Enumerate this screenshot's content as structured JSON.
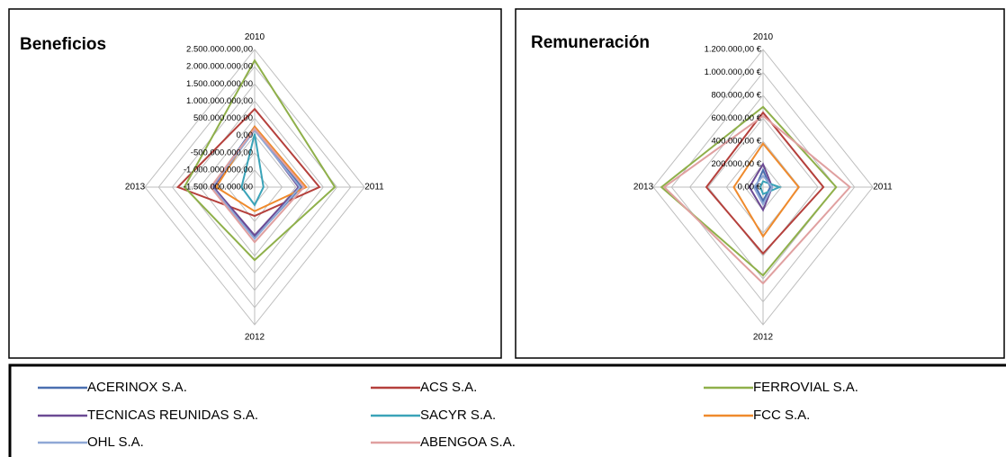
{
  "chart_data": [
    {
      "type": "radar",
      "title": "Beneficios",
      "categories": [
        "2010",
        "2011",
        "2012",
        "2013"
      ],
      "rlim": [
        -1500000000,
        2500000000
      ],
      "rticks": [
        {
          "value": -1500000000,
          "label": "-1.500.000.000,00"
        },
        {
          "value": -1000000000,
          "label": "-1.000.000.000,00"
        },
        {
          "value": -500000000,
          "label": "-500.000.000,00"
        },
        {
          "value": 0,
          "label": "0,00"
        },
        {
          "value": 500000000,
          "label": "500.000.000,00"
        },
        {
          "value": 1000000000,
          "label": "1.000.000.000,00"
        },
        {
          "value": 1500000000,
          "label": "1.500.000.000,00"
        },
        {
          "value": 2000000000,
          "label": "2.000.000.000,00"
        },
        {
          "value": 2500000000,
          "label": "2.500.000.000,00"
        }
      ],
      "series": [
        {
          "values": [
            260000000,
            200000000,
            -20000000,
            60000000
          ]
        },
        {
          "values": [
            770000000,
            860000000,
            -660000000,
            1300000000
          ]
        },
        {
          "values": [
            2180000000,
            1420000000,
            620000000,
            1060000000
          ]
        },
        {
          "values": [
            200000000,
            100000000,
            -100000000,
            0
          ]
        },
        {
          "values": [
            50000000,
            -1180000000,
            -980000000,
            -1020000000
          ]
        },
        {
          "values": [
            260000000,
            380000000,
            -800000000,
            -100000000
          ]
        },
        {
          "values": [
            150000000,
            150000000,
            0,
            50000000
          ]
        },
        {
          "values": [
            200000000,
            300000000,
            100000000,
            100000000
          ]
        }
      ]
    },
    {
      "type": "radar",
      "title": "Remuneración",
      "categories": [
        "2010",
        "2011",
        "2012",
        "2013"
      ],
      "rlim": [
        0,
        1200000
      ],
      "rticks": [
        {
          "value": 0,
          "label": "0,00 €"
        },
        {
          "value": 200000,
          "label": "200.000,00 €"
        },
        {
          "value": 400000,
          "label": "400.000,00 €"
        },
        {
          "value": 600000,
          "label": "600.000,00 €"
        },
        {
          "value": 800000,
          "label": "800.000,00 €"
        },
        {
          "value": 1000000,
          "label": "1.000.000,00 €"
        },
        {
          "value": 1200000,
          "label": "1.200.000,00 €"
        }
      ],
      "series": [
        {
          "values": [
            150000,
            80000,
            120000,
            80000
          ]
        },
        {
          "values": [
            650000,
            660000,
            580000,
            620000
          ]
        },
        {
          "values": [
            700000,
            800000,
            770000,
            1110000
          ]
        },
        {
          "values": [
            200000,
            100000,
            200000,
            150000
          ]
        },
        {
          "values": [
            50000,
            180000,
            60000,
            30000
          ]
        },
        {
          "values": [
            380000,
            390000,
            430000,
            320000
          ]
        },
        {
          "values": [
            100000,
            100000,
            150000,
            100000
          ]
        },
        {
          "values": [
            620000,
            950000,
            840000,
            1080000
          ]
        }
      ]
    }
  ],
  "legend": [
    {
      "name": "ACERINOX S.A.",
      "color": "#4a6fb0"
    },
    {
      "name": "ACS S.A.",
      "color": "#b5403c"
    },
    {
      "name": "FERROVIAL S.A.",
      "color": "#8fb04a"
    },
    {
      "name": "TECNICAS REUNIDAS S.A.",
      "color": "#6b4a94"
    },
    {
      "name": "SACYR S.A.",
      "color": "#3aa3b8"
    },
    {
      "name": "FCC S.A.",
      "color": "#ef8a2c"
    },
    {
      "name": "OHL S.A.",
      "color": "#8fa8d6"
    },
    {
      "name": "ABENGOA S.A.",
      "color": "#e0a0a0"
    }
  ]
}
